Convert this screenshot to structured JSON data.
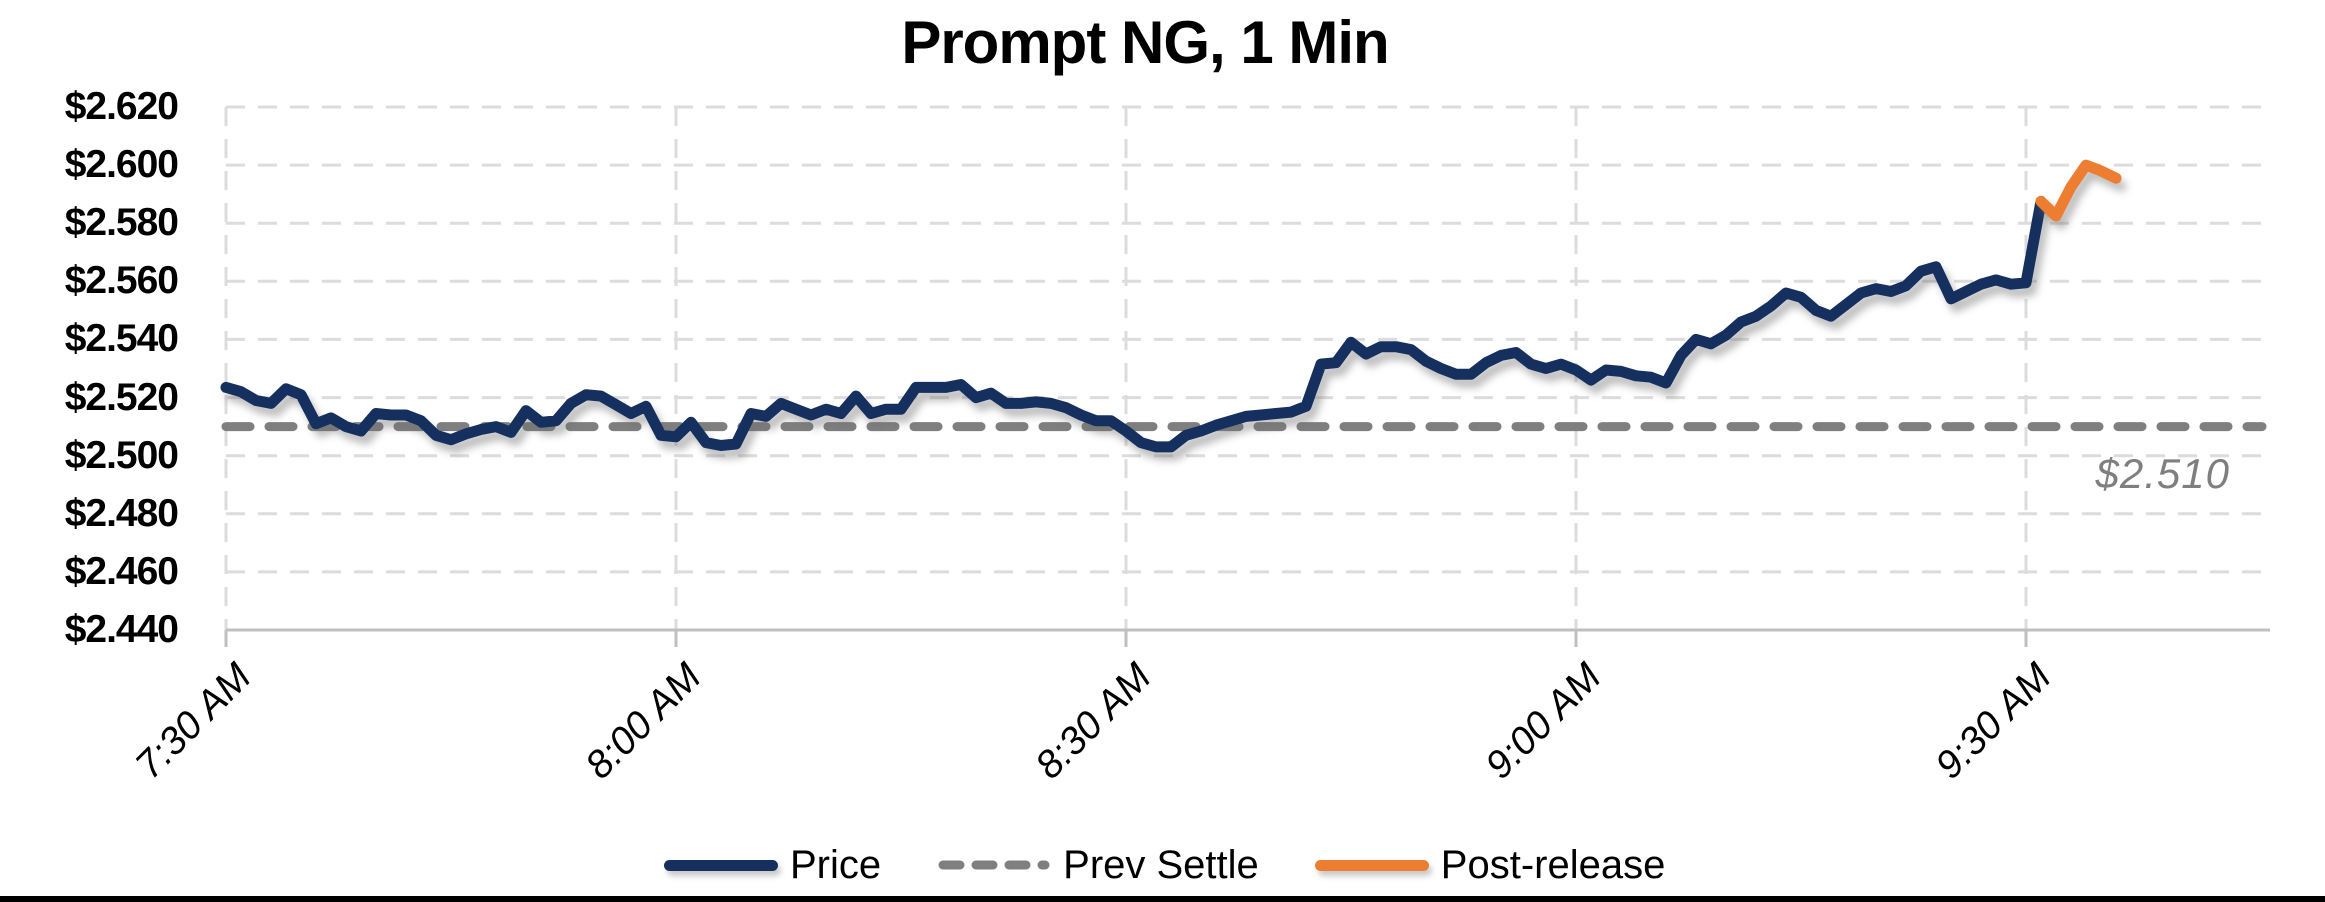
{
  "header": {
    "title": "Prompt NG, 1 Min"
  },
  "legend": {
    "items": [
      {
        "label": "Price",
        "color": "#15305f",
        "style": "solid"
      },
      {
        "label": "Prev Settle",
        "color": "#7f7f7f",
        "style": "dashed"
      },
      {
        "label": "Post-release",
        "color": "#ed7d31",
        "style": "solid"
      }
    ]
  },
  "colors": {
    "price_line": "#15305f",
    "post_release_line": "#ed7d31",
    "prev_settle_line": "#7f7f7f",
    "gridline": "#dcdcdc",
    "axis_line": "#bfbfbf",
    "annotation_text": "#7f7f7f",
    "background": "#ffffff"
  },
  "chart_data": {
    "type": "line",
    "title": "Prompt NG, 1 Min",
    "grid": true,
    "legend_position": "bottom",
    "x_axis": {
      "ticks": [
        "7:30 AM",
        "8:00 AM",
        "8:30 AM",
        "9:00 AM",
        "9:30 AM"
      ],
      "start": "7:30 AM",
      "end": "9:46 AM",
      "interval_label": "1 Min"
    },
    "y_axis": {
      "min": 2.44,
      "max": 2.62,
      "step": 0.02,
      "ticks": [
        {
          "label": "$2.440",
          "value": 2.44
        },
        {
          "label": "$2.460",
          "value": 2.46
        },
        {
          "label": "$2.480",
          "value": 2.48
        },
        {
          "label": "$2.500",
          "value": 2.5
        },
        {
          "label": "$2.520",
          "value": 2.52
        },
        {
          "label": "$2.540",
          "value": 2.54
        },
        {
          "label": "$2.560",
          "value": 2.56
        },
        {
          "label": "$2.580",
          "value": 2.58
        },
        {
          "label": "$2.600",
          "value": 2.6
        },
        {
          "label": "$2.620",
          "value": 2.62
        }
      ]
    },
    "prev_settle": {
      "name": "Prev Settle",
      "value": 2.51,
      "annotation": "$2.510",
      "color": "#7f7f7f"
    },
    "series": [
      {
        "name": "Price",
        "color": "#15305f",
        "start_time": "7:30 AM",
        "interval_minutes": 1,
        "values": [
          2.5235,
          2.522,
          2.519,
          2.518,
          2.523,
          2.521,
          2.511,
          2.513,
          2.51,
          2.5085,
          2.5145,
          2.514,
          2.514,
          2.512,
          2.507,
          2.5055,
          2.5075,
          2.509,
          2.51,
          2.508,
          2.5155,
          2.5115,
          2.512,
          2.518,
          2.521,
          2.5205,
          2.5175,
          2.5145,
          2.517,
          2.507,
          2.5065,
          2.5115,
          2.5045,
          2.5035,
          2.504,
          2.5145,
          2.5135,
          2.518,
          2.516,
          2.514,
          2.516,
          2.5145,
          2.5205,
          2.5145,
          2.516,
          2.516,
          2.5235,
          2.5235,
          2.5235,
          2.5245,
          2.52,
          2.5215,
          2.518,
          2.518,
          2.5185,
          2.518,
          2.5165,
          2.514,
          2.512,
          2.512,
          2.5085,
          2.5045,
          2.503,
          2.503,
          2.507,
          2.5085,
          2.5105,
          2.512,
          2.5135,
          2.514,
          2.5145,
          2.515,
          2.517,
          2.5315,
          2.532,
          2.539,
          2.535,
          2.5375,
          2.5375,
          2.5365,
          2.5325,
          2.53,
          2.528,
          2.528,
          2.532,
          2.5345,
          2.5355,
          2.5315,
          2.53,
          2.5315,
          2.5295,
          2.526,
          2.5295,
          2.529,
          2.5275,
          2.527,
          2.525,
          2.5345,
          2.54,
          2.5385,
          2.5415,
          2.546,
          2.548,
          2.5515,
          2.556,
          2.5545,
          2.55,
          2.548,
          2.552,
          2.556,
          2.5575,
          2.5565,
          2.5585,
          2.5635,
          2.565,
          2.554,
          2.5565,
          2.559,
          2.5605,
          2.559,
          2.5595,
          2.5875
        ]
      },
      {
        "name": "Post-release",
        "color": "#ed7d31",
        "start_time": "9:31 AM",
        "interval_minutes": 1,
        "values": [
          2.5875,
          2.5825,
          2.5925,
          2.6,
          2.598,
          2.5955
        ]
      }
    ]
  }
}
